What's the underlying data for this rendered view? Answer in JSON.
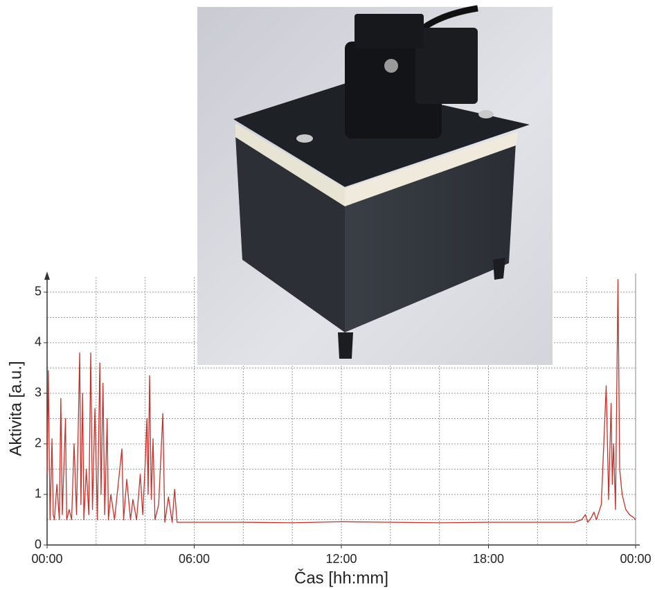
{
  "chart_data": {
    "type": "line",
    "x_label": "Čas [hh:mm]",
    "y_label": "Aktivita [a.u.]",
    "xlim": [
      0,
      24
    ],
    "ylim": [
      0,
      5.3
    ],
    "xticks": [
      {
        "value": 0,
        "label": "00:00"
      },
      {
        "value": 6,
        "label": "06:00"
      },
      {
        "value": 12,
        "label": "12:00"
      },
      {
        "value": 18,
        "label": "18:00"
      },
      {
        "value": 24,
        "label": "00:00"
      }
    ],
    "yticks": [
      0,
      1,
      2,
      3,
      4,
      5
    ],
    "x_minor_ticks": [
      2,
      4,
      8,
      10,
      14,
      16,
      20,
      22
    ],
    "y_minor_ticks": [
      0.5,
      1.5,
      2.5,
      3.5,
      4.5
    ],
    "grid": true,
    "x": [
      0,
      0.05,
      0.12,
      0.2,
      0.25,
      0.3,
      0.4,
      0.5,
      0.56,
      0.62,
      0.75,
      0.8,
      0.9,
      1.0,
      1.1,
      1.2,
      1.33,
      1.38,
      1.45,
      1.5,
      1.6,
      1.7,
      1.78,
      1.85,
      1.95,
      2.05,
      2.15,
      2.2,
      2.28,
      2.35,
      2.45,
      2.5,
      2.6,
      2.75,
      2.9,
      3.05,
      3.12,
      3.25,
      3.4,
      3.5,
      3.65,
      3.8,
      3.9,
      4.0,
      4.07,
      4.12,
      4.18,
      4.25,
      4.32,
      4.4,
      4.55,
      4.72,
      4.8,
      4.95,
      5.1,
      5.2,
      5.3,
      6,
      8,
      10,
      12,
      14,
      16,
      18,
      20,
      21.5,
      21.8,
      21.95,
      22.05,
      22.2,
      22.3,
      22.4,
      22.6,
      22.8,
      22.9,
      23.0,
      23.05,
      23.1,
      23.18,
      23.28,
      23.35,
      23.45,
      23.6,
      23.75,
      23.9,
      24
    ],
    "series": [
      {
        "color": "#c8302a",
        "values": [
          1.4,
          3.45,
          0.5,
          2.1,
          0.6,
          0.5,
          1.2,
          0.5,
          2.9,
          0.6,
          2.5,
          0.5,
          0.7,
          0.5,
          2.0,
          0.6,
          3.8,
          0.8,
          3.0,
          0.5,
          1.5,
          0.6,
          3.8,
          0.7,
          2.7,
          0.5,
          3.6,
          1.0,
          3.2,
          0.6,
          2.5,
          0.5,
          1.0,
          0.5,
          1.2,
          1.9,
          0.5,
          1.3,
          0.5,
          0.9,
          0.5,
          1.4,
          0.6,
          1.6,
          2.5,
          1.0,
          3.35,
          0.9,
          2.1,
          0.5,
          0.8,
          2.6,
          0.45,
          0.95,
          0.45,
          1.1,
          0.45,
          0.45,
          0.45,
          0.44,
          0.46,
          0.45,
          0.44,
          0.45,
          0.45,
          0.45,
          0.5,
          0.6,
          0.45,
          0.55,
          0.65,
          0.5,
          0.8,
          3.15,
          0.9,
          2.8,
          1.2,
          2.0,
          0.7,
          5.25,
          1.5,
          1.0,
          0.7,
          0.6,
          0.55,
          0.5
        ]
      }
    ]
  }
}
